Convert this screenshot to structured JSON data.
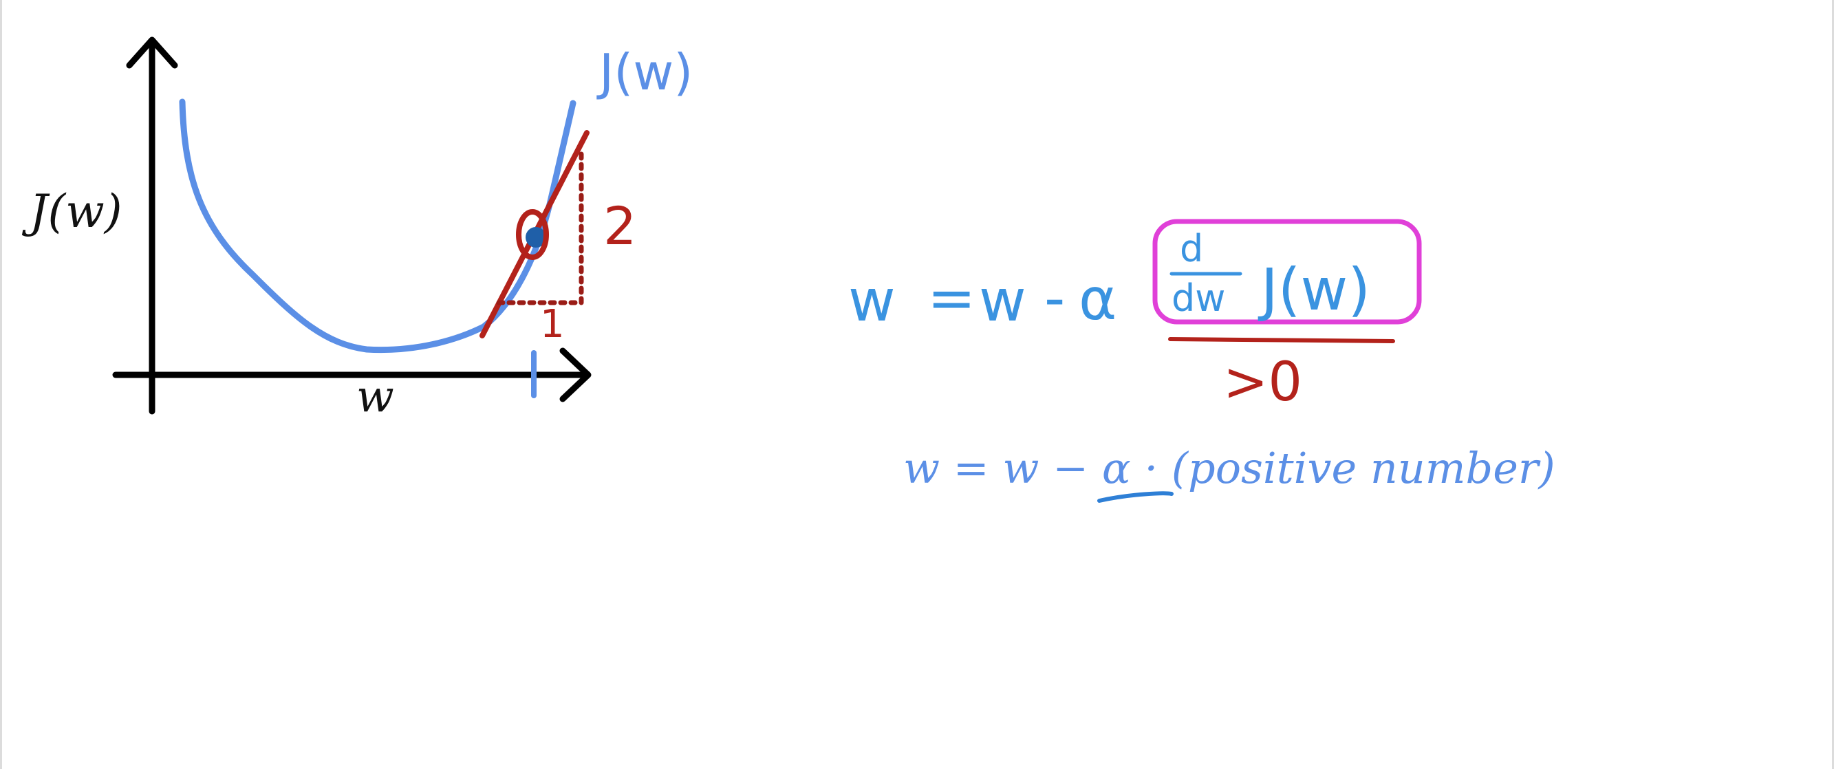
{
  "graph": {
    "y_axis_label": "J(w)",
    "x_axis_label": "w",
    "curve_label": "J(w)",
    "rise_label": "2",
    "run_label": "1"
  },
  "update_rule": {
    "lhs": "w",
    "equals": "=",
    "w_term": "w",
    "minus": "-",
    "alpha": "α",
    "deriv_numerator": "d",
    "deriv_denominator": "dw",
    "function": "J(w)",
    "annotation": ">0"
  },
  "simplified_rule": {
    "text": "w = w − α · (positive number)"
  },
  "colors": {
    "curve": "#5b8fe6",
    "tangent": "#b3221b",
    "axes": "#000000",
    "point": "#1f5fa8",
    "highlight_box": "#e040d8",
    "equation_ink": "#3a93e0",
    "annotation_ink": "#b3221b",
    "simplified_ink": "#5b8fe6",
    "underline_ink": "#2e7fd6"
  }
}
